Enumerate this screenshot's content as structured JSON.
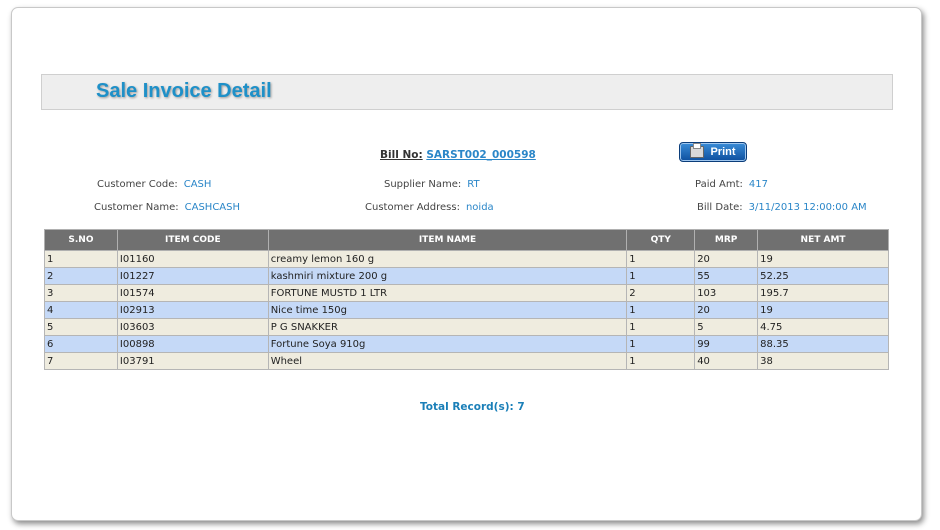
{
  "page": {
    "title": "Sale Invoice Detail",
    "bill_label": "Bill No:",
    "bill_no": "SARST002_000598",
    "print_label": "Print"
  },
  "info": {
    "customer_code_label": "Customer Code:",
    "customer_code": "CASH",
    "customer_name_label": "Customer Name:",
    "customer_name": "CASHCASH",
    "supplier_name_label": "Supplier Name:",
    "supplier_name": "RT",
    "customer_address_label": "Customer Address:",
    "customer_address": "noida",
    "paid_amt_label": "Paid Amt:",
    "paid_amt": "417",
    "bill_date_label": "Bill Date:",
    "bill_date": "3/11/2013 12:00:00 AM"
  },
  "table": {
    "headers": [
      "S.NO",
      "ITEM CODE",
      "ITEM NAME",
      "QTY",
      "MRP",
      "NET AMT"
    ],
    "rows": [
      [
        "1",
        "I01160",
        "creamy lemon 160 g",
        "1",
        "20",
        "19"
      ],
      [
        "2",
        "I01227",
        "kashmiri mixture 200 g",
        "1",
        "55",
        "52.25"
      ],
      [
        "3",
        "I01574",
        "FORTUNE MUSTD 1 LTR",
        "2",
        "103",
        "195.7"
      ],
      [
        "4",
        "I02913",
        "Nice time 150g",
        "1",
        "20",
        "19"
      ],
      [
        "5",
        "I03603",
        "P G SNAKKER",
        "1",
        "5",
        "4.75"
      ],
      [
        "6",
        "I00898",
        "Fortune Soya 910g",
        "1",
        "99",
        "88.35"
      ],
      [
        "7",
        "I03791",
        "Wheel",
        "1",
        "40",
        "38"
      ]
    ]
  },
  "footer": {
    "total_label": "Total Record(s):",
    "total_count": "7"
  },
  "colors": {
    "accent": "#1e90c8",
    "header_bg": "#707070",
    "row_odd": "#efecdf",
    "row_even": "#c5d9f7"
  }
}
